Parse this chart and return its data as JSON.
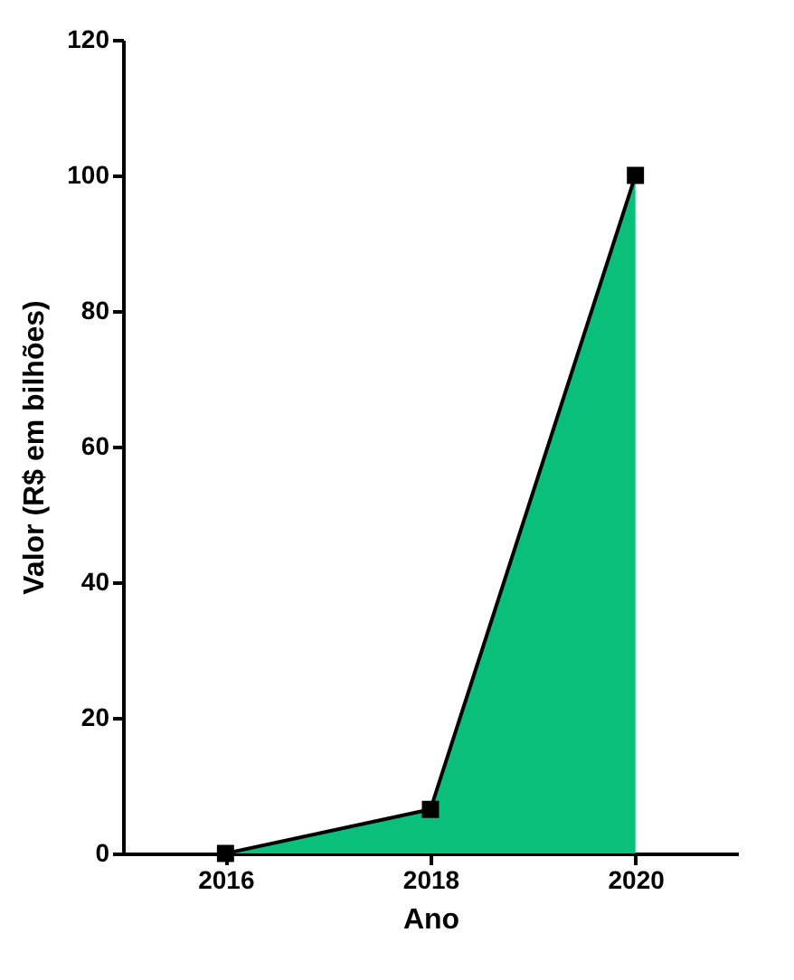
{
  "chart_data": {
    "type": "area",
    "xlabel": "Ano",
    "ylabel": "Valor (R$ em bilhões)",
    "x": [
      2016,
      2018,
      2020
    ],
    "series": [
      {
        "color": "#0abf7a",
        "values": [
          0,
          6.5,
          100
        ]
      }
    ],
    "xlim": [
      2015,
      2021
    ],
    "xticks": [
      2016,
      2018,
      2020
    ],
    "ylim": [
      0,
      120
    ],
    "yticks": [
      0,
      20,
      40,
      60,
      80,
      100,
      120
    ],
    "marker": "square",
    "grid": false
  }
}
